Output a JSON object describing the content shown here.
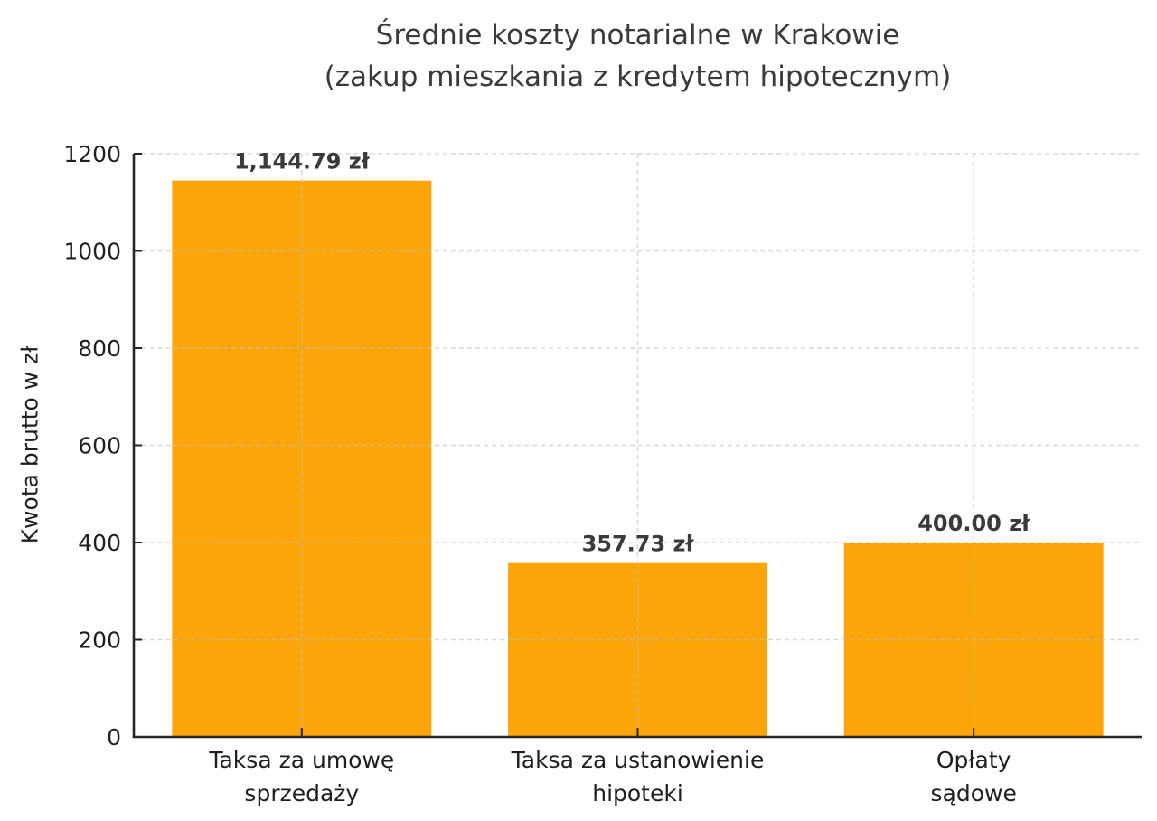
{
  "figure": {
    "title_line1": "Średnie koszty notarialne w Krakowie",
    "title_line2": "(zakup mieszkania z kredytem hipotecznym)"
  },
  "chart_data": {
    "type": "bar",
    "title": "Średnie koszty notarialne w Krakowie (zakup mieszkania z kredytem hipotecznym)",
    "categories": [
      "Taksa za umowę sprzedaży",
      "Taksa za ustanowienie hipoteki",
      "Opłaty sądowe"
    ],
    "category_lines": [
      [
        "Taksa za umowę",
        "sprzedaży"
      ],
      [
        "Taksa za ustanowienie",
        "hipoteki"
      ],
      [
        "Opłaty",
        "sądowe"
      ]
    ],
    "values": [
      1144.79,
      357.73,
      400.0
    ],
    "value_labels": [
      "1,144.79 zł",
      "357.73 zł",
      "400.00 zł"
    ],
    "xlabel": "",
    "ylabel": "Kwota brutto w zł",
    "ylim": [
      0,
      1200
    ],
    "yticks": [
      0,
      200,
      400,
      600,
      800,
      1000,
      1200
    ],
    "grid": "dashed horizontal at each y-tick and dashed vertical at each bar center, drawn over bars",
    "legend": "none"
  },
  "colors": {
    "background": "#FFFFFF",
    "bar": "#FBA50A",
    "grid": "#BFBFBF",
    "spine": "#262626",
    "tick_label": "#1F1F1F",
    "title": "#3A3A3A",
    "value_label": "#3A3A3A"
  }
}
